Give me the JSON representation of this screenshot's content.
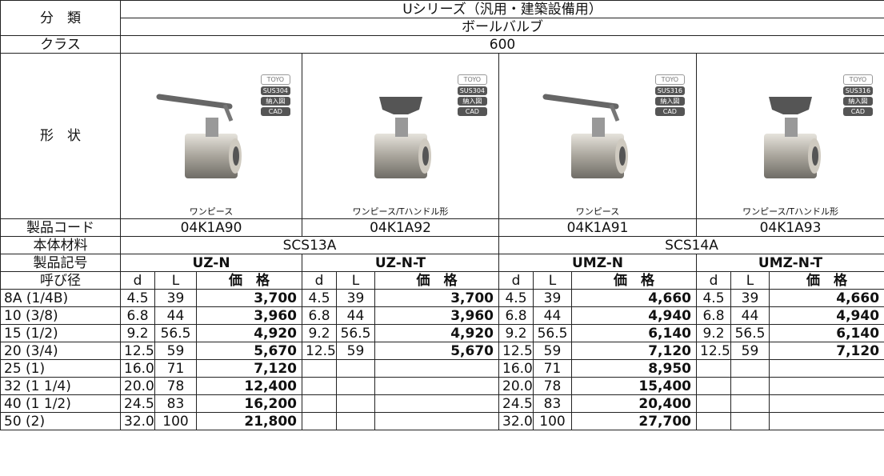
{
  "header": {
    "category_label": "分　類",
    "series": "Uシリーズ（汎用・建築設備用）",
    "type": "ボールバルブ",
    "class_label": "クラス",
    "class": "600",
    "shape_label": "形　状",
    "code_label": "製品コード",
    "material_label": "本体材料",
    "model_label": "製品記号",
    "size_label": "呼び径"
  },
  "materials": [
    "SCS13A",
    "SCS14A"
  ],
  "columns": [
    "d",
    "L",
    "価　格"
  ],
  "products": [
    {
      "badges": [
        "TOYO",
        "SUS304",
        "納入図",
        "CAD"
      ],
      "caption": "ワンピース",
      "code": "04K1A90",
      "model": "UZ-N"
    },
    {
      "badges": [
        "TOYO",
        "SUS304",
        "納入図",
        "CAD"
      ],
      "caption": "ワンピース/Tハンドル形",
      "code": "04K1A92",
      "model": "UZ-N-T"
    },
    {
      "badges": [
        "TOYO",
        "SUS316",
        "納入図",
        "CAD"
      ],
      "caption": "ワンピース",
      "code": "04K1A91",
      "model": "UMZ-N"
    },
    {
      "badges": [
        "TOYO",
        "SUS316",
        "納入図",
        "CAD"
      ],
      "caption": "ワンピース/Tハンドル形",
      "code": "04K1A93",
      "model": "UMZ-N-T"
    }
  ],
  "rows": [
    {
      "size": "8A (1/4B)",
      "values": [
        [
          "4.5",
          "39",
          "3,700"
        ],
        [
          "4.5",
          "39",
          "3,700"
        ],
        [
          "4.5",
          "39",
          "4,660"
        ],
        [
          "4.5",
          "39",
          "4,660"
        ]
      ]
    },
    {
      "size": "10 (3/8)",
      "values": [
        [
          "6.8",
          "44",
          "3,960"
        ],
        [
          "6.8",
          "44",
          "3,960"
        ],
        [
          "6.8",
          "44",
          "4,940"
        ],
        [
          "6.8",
          "44",
          "4,940"
        ]
      ]
    },
    {
      "size": "15 (1/2)",
      "values": [
        [
          "9.2",
          "56.5",
          "4,920"
        ],
        [
          "9.2",
          "56.5",
          "4,920"
        ],
        [
          "9.2",
          "56.5",
          "6,140"
        ],
        [
          "9.2",
          "56.5",
          "6,140"
        ]
      ]
    },
    {
      "size": "20 (3/4)",
      "values": [
        [
          "12.5",
          "59",
          "5,670"
        ],
        [
          "12.5",
          "59",
          "5,670"
        ],
        [
          "12.5",
          "59",
          "7,120"
        ],
        [
          "12.5",
          "59",
          "7,120"
        ]
      ]
    },
    {
      "size": "25 (1)",
      "values": [
        [
          "16.0",
          "71",
          "7,120"
        ],
        null,
        [
          "16.0",
          "71",
          "8,950"
        ],
        null
      ]
    },
    {
      "size": "32 (1 1/4)",
      "values": [
        [
          "20.0",
          "78",
          "12,400"
        ],
        null,
        [
          "20.0",
          "78",
          "15,400"
        ],
        null
      ]
    },
    {
      "size": "40 (1 1/2)",
      "values": [
        [
          "24.5",
          "83",
          "16,200"
        ],
        null,
        [
          "24.5",
          "83",
          "20,400"
        ],
        null
      ]
    },
    {
      "size": "50 (2)",
      "values": [
        [
          "32.0",
          "100",
          "21,800"
        ],
        null,
        [
          "32.0",
          "100",
          "27,700"
        ],
        null
      ]
    }
  ]
}
